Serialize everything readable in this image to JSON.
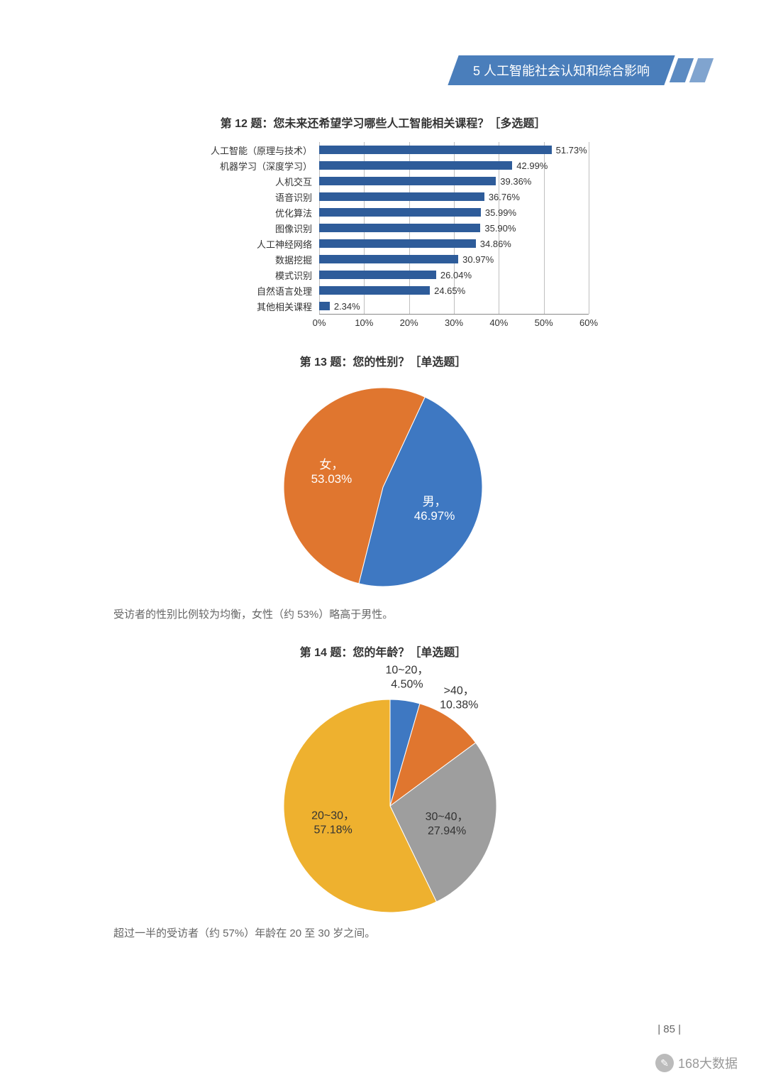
{
  "header": {
    "section": "5 人工智能社会认知和综合影响"
  },
  "page_number": "| 85 |",
  "watermark": "168大数据",
  "bar_chart": {
    "type": "bar",
    "title": "第 12 题：您未来还希望学习哪些人工智能相关课程？［多选题］",
    "xlim": [
      0,
      60
    ],
    "xtick_step": 10,
    "xtick_suffix": "%",
    "bar_color": "#2e5c9a",
    "grid_color": "#bfbfbf",
    "label_fontsize": 13,
    "title_fontsize": 16,
    "items": [
      {
        "label": "人工智能（原理与技术）",
        "value": 51.73
      },
      {
        "label": "机器学习（深度学习）",
        "value": 42.99
      },
      {
        "label": "人机交互",
        "value": 39.36
      },
      {
        "label": "语音识别",
        "value": 36.76
      },
      {
        "label": "优化算法",
        "value": 35.99
      },
      {
        "label": "图像识别",
        "value": 35.9
      },
      {
        "label": "人工神经网络",
        "value": 34.86
      },
      {
        "label": "数据挖掘",
        "value": 30.97
      },
      {
        "label": "模式识别",
        "value": 26.04
      },
      {
        "label": "自然语言处理",
        "value": 24.65
      },
      {
        "label": "其他相关课程",
        "value": 2.34
      }
    ]
  },
  "pie_gender": {
    "type": "pie",
    "title": "第 13 题：您的性别？［单选题］",
    "radius": 140,
    "label_fontsize": 17,
    "title_fontsize": 16,
    "start_angle_deg": -65,
    "slices": [
      {
        "label": "男，",
        "pct_label": "46.97%",
        "value": 46.97,
        "color": "#3e78c2",
        "text_color": "#ffffff"
      },
      {
        "label": "女，",
        "pct_label": "53.03%",
        "value": 53.03,
        "color": "#e0762f",
        "text_color": "#ffffff"
      }
    ],
    "caption": "受访者的性别比例较为均衡，女性（约 53%）略高于男性。"
  },
  "pie_age": {
    "type": "pie",
    "title": "第 14 题：您的年龄？［单选题］",
    "radius": 150,
    "label_fontsize": 16,
    "title_fontsize": 16,
    "start_angle_deg": -90,
    "slices": [
      {
        "label": "10~20，",
        "pct_label": "4.50%",
        "value": 4.5,
        "color": "#3e78c2",
        "text_color": "#333333",
        "label_outside": true
      },
      {
        "label": ">40，",
        "pct_label": "10.38%",
        "value": 10.38,
        "color": "#e0762f",
        "text_color": "#333333",
        "label_outside": true
      },
      {
        "label": "30~40，",
        "pct_label": "27.94%",
        "value": 27.94,
        "color": "#9e9e9e",
        "text_color": "#333333",
        "label_outside": false
      },
      {
        "label": "20~30，",
        "pct_label": "57.18%",
        "value": 57.18,
        "color": "#eeb12f",
        "text_color": "#333333",
        "label_outside": false
      }
    ],
    "caption": "超过一半的受访者（约 57%）年龄在 20 至 30 岁之间。"
  }
}
